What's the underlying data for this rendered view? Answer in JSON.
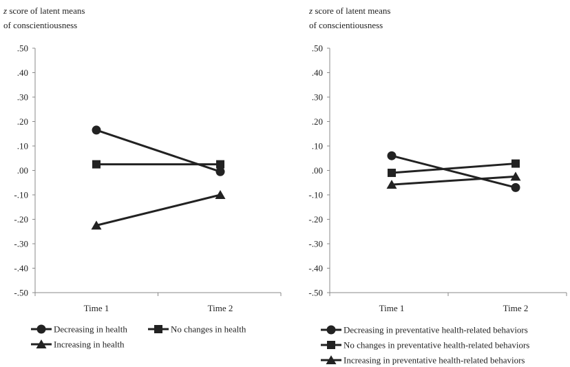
{
  "chart_data": [
    {
      "type": "line",
      "ylabel_line1_italic": "z",
      "ylabel_line1_rest": " score of latent means",
      "ylabel_line2": "of conscientiousness",
      "ylim": [
        -0.5,
        0.5
      ],
      "yticks": [
        0.5,
        0.4,
        0.3,
        0.2,
        0.1,
        0.0,
        -0.1,
        -0.2,
        -0.3,
        -0.4,
        -0.5
      ],
      "ytick_labels": [
        ".50",
        ".40",
        ".30",
        ".20",
        ".10",
        ".00",
        "-.10",
        "-.20",
        "-.30",
        "-.40",
        "-.50"
      ],
      "categories": [
        "Time 1",
        "Time 2"
      ],
      "grid": false,
      "legend_position": "bottom",
      "series": [
        {
          "name": "Decreasing in health",
          "marker": "circle",
          "values": [
            0.165,
            -0.005
          ]
        },
        {
          "name": "No changes in health",
          "marker": "square",
          "values": [
            0.025,
            0.025
          ]
        },
        {
          "name": "Increasing in health",
          "marker": "triangle",
          "values": [
            -0.225,
            -0.1
          ]
        }
      ]
    },
    {
      "type": "line",
      "ylabel_line1_italic": "z",
      "ylabel_line1_rest": " score of latent means",
      "ylabel_line2": "of conscientiousness",
      "ylim": [
        -0.5,
        0.5
      ],
      "yticks": [
        0.5,
        0.4,
        0.3,
        0.2,
        0.1,
        0.0,
        -0.1,
        -0.2,
        -0.3,
        -0.4,
        -0.5
      ],
      "ytick_labels": [
        ".50",
        ".40",
        ".30",
        ".20",
        ".10",
        ".00",
        "-.10",
        "-.20",
        "-.30",
        "-.40",
        "-.50"
      ],
      "categories": [
        "Time 1",
        "Time 2"
      ],
      "grid": false,
      "legend_position": "bottom",
      "series": [
        {
          "name": "Decreasing in preventative health-related behaviors",
          "marker": "circle",
          "values": [
            0.06,
            -0.07
          ]
        },
        {
          "name": "No changes in preventative health-related behaviors",
          "marker": "square",
          "values": [
            -0.01,
            0.028
          ]
        },
        {
          "name": "Increasing in preventative health-related behaviors",
          "marker": "triangle",
          "values": [
            -0.058,
            -0.025
          ]
        }
      ]
    }
  ]
}
